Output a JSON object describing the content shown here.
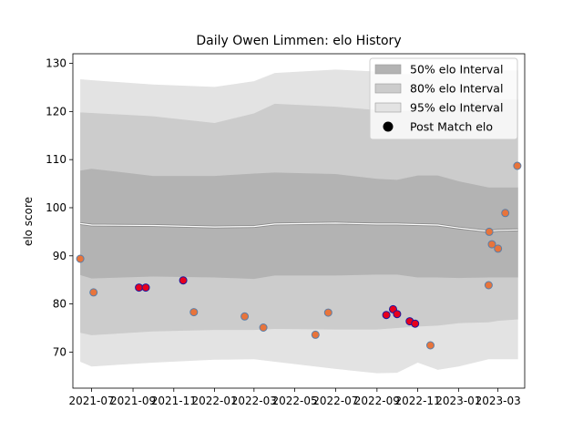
{
  "chart_data": {
    "type": "line",
    "title": "Daily Owen Limmen: elo History",
    "xlabel": "",
    "ylabel": "elo score",
    "ylim": [
      62.5,
      132
    ],
    "xlim": [
      "2021-06-03",
      "2023-04-10"
    ],
    "x_ticks": [
      "2021-07",
      "2021-09",
      "2021-11",
      "2022-01",
      "2022-03",
      "2022-05",
      "2022-07",
      "2022-09",
      "2022-11",
      "2023-01",
      "2023-03"
    ],
    "y_ticks": [
      70,
      80,
      90,
      100,
      110,
      120,
      130
    ],
    "grid": false,
    "legend_placement": "top-right",
    "legend": [
      {
        "label": "50% elo Interval",
        "kind": "band50"
      },
      {
        "label": "80% elo Interval",
        "kind": "band80"
      },
      {
        "label": "95% elo Interval",
        "kind": "band95"
      },
      {
        "label": "Post Match elo",
        "kind": "marker"
      }
    ],
    "colors": {
      "band50": "#b3b3b3",
      "band80": "#cccccc",
      "band95": "#e3e3e3",
      "mean_line": "#8c8c8c",
      "mean_line_highlight": "#ffffff",
      "point_fill": "#e8743b",
      "point_edge": "#5a7ea8",
      "point_fill_highlight": "#e8001c",
      "point_edge_highlight": "#1a1aa0"
    },
    "bands": {
      "x": [
        "2021-06-14",
        "2021-07-01",
        "2021-10-01",
        "2022-01-01",
        "2022-03-01",
        "2022-04-01",
        "2022-07-01",
        "2022-09-01",
        "2022-10-01",
        "2022-11-01",
        "2022-12-01",
        "2023-01-01",
        "2023-02-15",
        "2023-03-01",
        "2023-03-31"
      ],
      "p95": [
        [
          68.0,
          126.7
        ],
        [
          67.0,
          126.5
        ],
        [
          67.8,
          125.6
        ],
        [
          68.4,
          125.1
        ],
        [
          68.5,
          126.3
        ],
        [
          68.0,
          128.0
        ],
        [
          66.5,
          128.7
        ],
        [
          65.6,
          128.3
        ],
        [
          65.7,
          127.8
        ],
        [
          67.8,
          127.8
        ],
        [
          66.3,
          128.0
        ],
        [
          67.0,
          128.5
        ],
        [
          68.5,
          128.5
        ],
        [
          68.5,
          128.5
        ],
        [
          68.5,
          128.5
        ]
      ],
      "p80": [
        [
          74.0,
          119.8
        ],
        [
          73.5,
          119.7
        ],
        [
          74.3,
          119.0
        ],
        [
          74.6,
          117.6
        ],
        [
          74.6,
          119.6
        ],
        [
          74.8,
          121.6
        ],
        [
          74.7,
          121.0
        ],
        [
          74.7,
          120.3
        ],
        [
          75.0,
          120.0
        ],
        [
          75.3,
          120.3
        ],
        [
          75.5,
          120.5
        ],
        [
          76.0,
          121.5
        ],
        [
          76.2,
          122.5
        ],
        [
          76.5,
          122.5
        ],
        [
          76.8,
          122.5
        ]
      ],
      "p50": [
        [
          86.0,
          107.7
        ],
        [
          85.3,
          108.1
        ],
        [
          85.7,
          106.6
        ],
        [
          85.5,
          106.6
        ],
        [
          85.2,
          107.1
        ],
        [
          85.9,
          107.3
        ],
        [
          85.9,
          107.0
        ],
        [
          86.1,
          106.0
        ],
        [
          86.1,
          105.8
        ],
        [
          85.5,
          106.7
        ],
        [
          85.5,
          106.7
        ],
        [
          85.4,
          105.5
        ],
        [
          85.5,
          104.2
        ],
        [
          85.5,
          104.2
        ],
        [
          85.5,
          104.2
        ]
      ],
      "mean": [
        96.7,
        96.4,
        96.3,
        96.0,
        96.1,
        96.6,
        96.8,
        96.6,
        96.6,
        96.5,
        96.4,
        95.8,
        95.1,
        95.3,
        95.4
      ]
    },
    "series": [
      {
        "name": "Post Match elo",
        "x": [
          "2021-06-14",
          "2021-07-04",
          "2021-09-10",
          "2021-09-20",
          "2021-11-15",
          "2021-12-01",
          "2022-02-15",
          "2022-03-15",
          "2022-06-01",
          "2022-06-20",
          "2022-09-15",
          "2022-09-25",
          "2022-10-01",
          "2022-10-20",
          "2022-10-28",
          "2022-11-20",
          "2023-02-15",
          "2023-02-16",
          "2023-02-20",
          "2023-03-01",
          "2023-03-12",
          "2023-03-30"
        ],
        "y": [
          89.4,
          82.4,
          83.4,
          83.4,
          84.9,
          78.3,
          77.4,
          75.1,
          73.6,
          78.2,
          77.7,
          78.9,
          77.9,
          76.4,
          75.9,
          71.4,
          83.9,
          95.0,
          92.4,
          91.5,
          98.9,
          108.7
        ],
        "highlight": [
          false,
          false,
          true,
          true,
          true,
          false,
          false,
          false,
          false,
          false,
          true,
          true,
          true,
          true,
          true,
          false,
          false,
          false,
          false,
          false,
          false,
          false
        ]
      }
    ]
  }
}
